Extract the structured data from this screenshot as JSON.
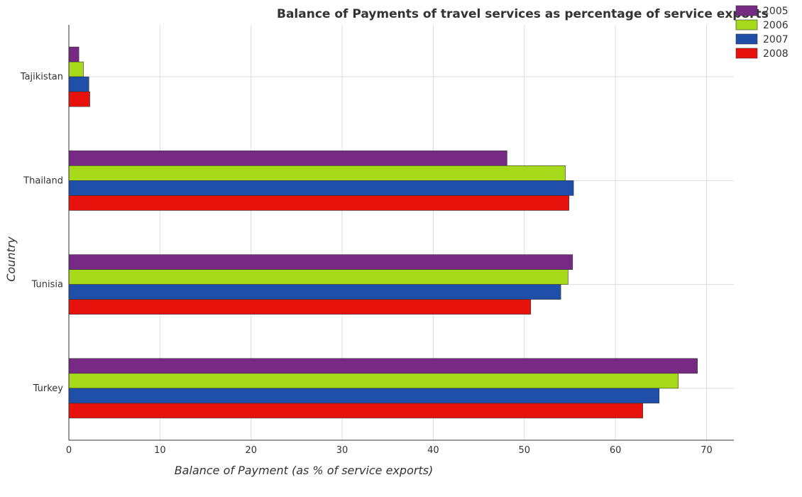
{
  "chart_data": {
    "type": "bar",
    "orientation": "horizontal",
    "title": "Balance of Payments of travel services as percentage of service exports",
    "xlabel": "Balance of Payment (as % of service exports)",
    "ylabel": "Country",
    "categories": [
      "Tajikistan",
      "Thailand",
      "Tunisia",
      "Turkey"
    ],
    "xlim": [
      0,
      73
    ],
    "xticks": [
      0,
      10,
      20,
      30,
      40,
      50,
      60,
      70
    ],
    "grid": true,
    "legend_position": "top-right",
    "series": [
      {
        "name": "2005",
        "color": "#762a83",
        "values": [
          1.1,
          48.1,
          55.3,
          69.0
        ]
      },
      {
        "name": "2006",
        "color": "#a6d91a",
        "values": [
          1.6,
          54.5,
          54.8,
          66.9
        ]
      },
      {
        "name": "2007",
        "color": "#1f4fa8",
        "values": [
          2.2,
          55.4,
          54.0,
          64.8
        ]
      },
      {
        "name": "2008",
        "color": "#e8120c",
        "values": [
          2.3,
          54.9,
          50.7,
          63.0
        ]
      }
    ]
  }
}
